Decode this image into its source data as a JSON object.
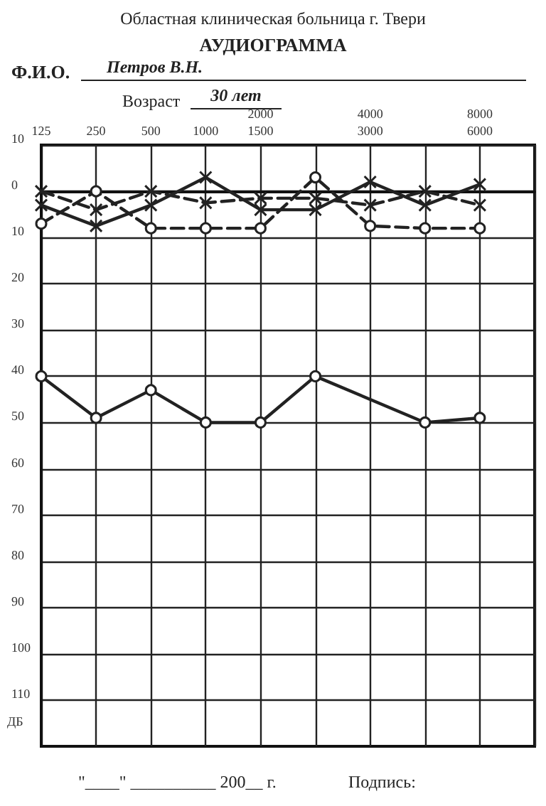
{
  "chart_data": {
    "type": "line",
    "subtitle": "Областная клиническая больница г. Твери",
    "title": "АУДИОГРАММА",
    "annotations": [
      "Ф.И.О.",
      "Петров В.Н.",
      "Возраст",
      "30 лет",
      "\"____\" __________ 200__ г.",
      "Подпись:"
    ],
    "categories": [
      "125",
      "250",
      "500",
      "1000",
      "2000\n1500",
      null,
      "4000\n3000",
      null,
      "8000\n6000",
      null
    ],
    "ylabel": "ДБ",
    "ylim": [
      120,
      -10
    ],
    "yticks": [
      {
        "value": -10,
        "label": "10"
      },
      0,
      10,
      20,
      30,
      40,
      50,
      60,
      70,
      80,
      90,
      100,
      110
    ],
    "grid": true,
    "series": [
      {
        "color": "#222222",
        "marker": "cross",
        "line_style": "solid",
        "values": [
          3,
          7.5,
          3,
          -3,
          4,
          4,
          -2,
          3,
          -1.5,
          null
        ]
      },
      {
        "color": "#222222",
        "marker": "cross",
        "line_style": "dashed",
        "values": [
          0,
          4,
          0,
          2.5,
          1.5,
          1.5,
          3,
          0,
          3,
          null
        ]
      },
      {
        "color": "#222222",
        "marker": "circle",
        "line_style": "dashed",
        "values": [
          7,
          0,
          8,
          8,
          8,
          -3,
          7.5,
          8,
          8,
          null
        ]
      },
      {
        "color": "#222222",
        "marker": "circle",
        "line_style": "solid",
        "values": [
          40,
          49,
          43,
          50,
          50,
          40,
          null,
          50,
          49,
          null
        ]
      }
    ]
  }
}
